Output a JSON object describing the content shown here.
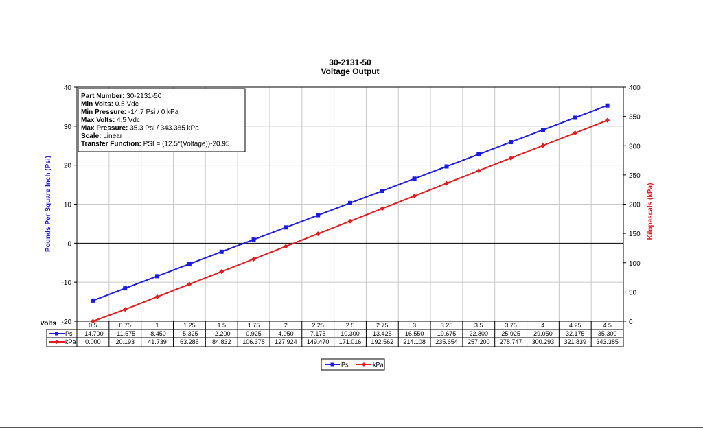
{
  "chart_data": {
    "type": "line",
    "title": "30-2131-50",
    "subtitle": "Voltage Output",
    "xlabel": "Volts",
    "ylabel_left": "Pounds Per Square Inch (Psi)",
    "ylabel_right": "Kilopascals (kPa)",
    "ylim_left": [
      -20,
      40
    ],
    "yticks_left": [
      -20,
      -10,
      0,
      10,
      20,
      30,
      40
    ],
    "ylim_right": [
      0,
      400
    ],
    "yticks_right": [
      0,
      50,
      100,
      150,
      200,
      250,
      300,
      350,
      400
    ],
    "grid": true,
    "legend_placement": "bottom-center",
    "x": [
      "0.5",
      "0.75",
      "1",
      "1.25",
      "1.5",
      "1.75",
      "2",
      "2.25",
      "2.5",
      "2.75",
      "3",
      "3.25",
      "3.5",
      "3.75",
      "4",
      "4.25",
      "4.5"
    ],
    "series": [
      {
        "name": "Psi",
        "axis": "left",
        "color": "#1a1ae6",
        "marker": "square",
        "values": [
          -14.7,
          -11.575,
          -8.45,
          -5.325,
          -2.2,
          0.925,
          4.05,
          7.175,
          10.3,
          13.425,
          16.55,
          19.675,
          22.8,
          25.925,
          29.05,
          32.175,
          35.3
        ],
        "labels": [
          "-14.700",
          "-11.575",
          "-8.450",
          "-5.325",
          "-2.200",
          "0.925",
          "4.050",
          "7.175",
          "10.300",
          "13.425",
          "16.550",
          "19.675",
          "22.800",
          "25.925",
          "29.050",
          "32.175",
          "35.300"
        ]
      },
      {
        "name": "kPa",
        "axis": "right",
        "color": "#e61a1a",
        "marker": "diamond",
        "values": [
          0,
          20.193,
          41.739,
          63.285,
          84.832,
          106.378,
          127.924,
          149.47,
          171.016,
          192.562,
          214.108,
          235.654,
          257.2,
          278.747,
          300.293,
          321.839,
          343.385
        ],
        "labels": [
          "0.000",
          "20.193",
          "41.739",
          "63.285",
          "84.832",
          "106.378",
          "127.924",
          "149.470",
          "171.016",
          "192.562",
          "214.108",
          "235.654",
          "257.200",
          "278.747",
          "300.293",
          "321.839",
          "343.385"
        ]
      }
    ],
    "info_box": [
      {
        "key": "Part Number:",
        "value": "30-2131-50"
      },
      {
        "key": "Min Volts:",
        "value": "0.5 Vdc"
      },
      {
        "key": "Min Pressure:",
        "value": "-14.7 Psi / 0 kPa"
      },
      {
        "key": "Max Volts:",
        "value": "4.5 Vdc"
      },
      {
        "key": "Max Pressure:",
        "value": "35.3 Psi / 343.385 kPa"
      },
      {
        "key": "Scale:",
        "value": "Linear"
      },
      {
        "key": "Transfer Function:",
        "value": "PSI = (12.5*(Voltage))-20.95"
      }
    ]
  }
}
